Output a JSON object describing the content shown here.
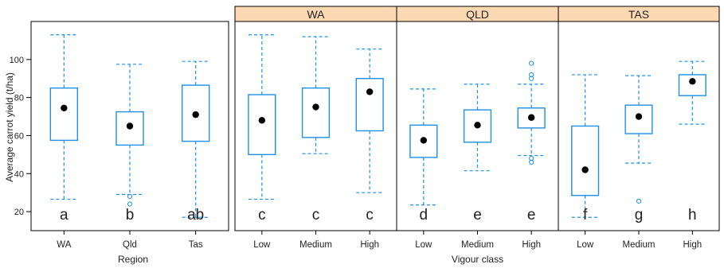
{
  "colors": {
    "box": "#1e90e6",
    "mean": "#000000",
    "strip_fill": "#fcd9b2",
    "frame": "#000000",
    "text": "#222222"
  },
  "chart_data": {
    "type": "box",
    "ylabel": "Average carrot yield (t/ha)",
    "ylim": [
      10,
      120
    ],
    "yticks": [
      "20",
      "40",
      "60",
      "80",
      "100"
    ],
    "grid": false,
    "panels": [
      {
        "strip": "",
        "xlabel": "Region",
        "boxes": [
          {
            "category": "WA",
            "min": 26.5,
            "q1": 57.5,
            "median": 74,
            "q3": 85,
            "max": 113,
            "mean": 74.5,
            "letter": "a",
            "outliers": []
          },
          {
            "category": "Qld",
            "min": 29,
            "q1": 55,
            "median": 65,
            "q3": 72.5,
            "max": 97.5,
            "mean": 65,
            "letter": "b",
            "outliers": [
              28,
              24
            ]
          },
          {
            "category": "Tas",
            "min": 17,
            "q1": 57,
            "median": 71,
            "q3": 86.5,
            "max": 99,
            "mean": 71,
            "letter": "ab",
            "outliers": []
          }
        ]
      },
      {
        "strip": "WA",
        "xlabel": "",
        "boxes": [
          {
            "category": "Low",
            "min": 26.5,
            "q1": 50,
            "median": 68,
            "q3": 81.5,
            "max": 113,
            "mean": 68,
            "letter": "c",
            "outliers": []
          },
          {
            "category": "Medium",
            "min": 50.5,
            "q1": 59,
            "median": 75,
            "q3": 85,
            "max": 112,
            "mean": 75,
            "letter": "c",
            "outliers": []
          },
          {
            "category": "High",
            "min": 30,
            "q1": 62.5,
            "median": 83,
            "q3": 90,
            "max": 105.5,
            "mean": 83,
            "letter": "c",
            "outliers": []
          }
        ]
      },
      {
        "strip": "QLD",
        "xlabel": "Vigour class",
        "boxes": [
          {
            "category": "Low",
            "min": 23.5,
            "q1": 48.5,
            "median": 57.5,
            "q3": 65.5,
            "max": 84.5,
            "mean": 57.5,
            "letter": "d",
            "outliers": []
          },
          {
            "category": "Medium",
            "min": 41.5,
            "q1": 56.5,
            "median": 65.5,
            "q3": 73.5,
            "max": 87,
            "mean": 65.5,
            "letter": "e",
            "outliers": []
          },
          {
            "category": "High",
            "min": 49.5,
            "q1": 64,
            "median": 69.5,
            "q3": 74.5,
            "max": 87,
            "mean": 69.5,
            "letter": "e",
            "outliers": [
              98,
              92,
              90,
              48,
              46
            ]
          }
        ]
      },
      {
        "strip": "TAS",
        "xlabel": "",
        "boxes": [
          {
            "category": "Low",
            "min": 17,
            "q1": 28.5,
            "median": 42,
            "q3": 65,
            "max": 92,
            "mean": 42,
            "letter": "f",
            "outliers": []
          },
          {
            "category": "Medium",
            "min": 45.5,
            "q1": 61,
            "median": 70,
            "q3": 76,
            "max": 91.5,
            "mean": 70,
            "letter": "g",
            "outliers": [
              25.5
            ]
          },
          {
            "category": "High",
            "min": 66,
            "q1": 81,
            "median": 88.5,
            "q3": 92,
            "max": 99,
            "mean": 88.5,
            "letter": "h",
            "outliers": []
          }
        ]
      }
    ]
  }
}
